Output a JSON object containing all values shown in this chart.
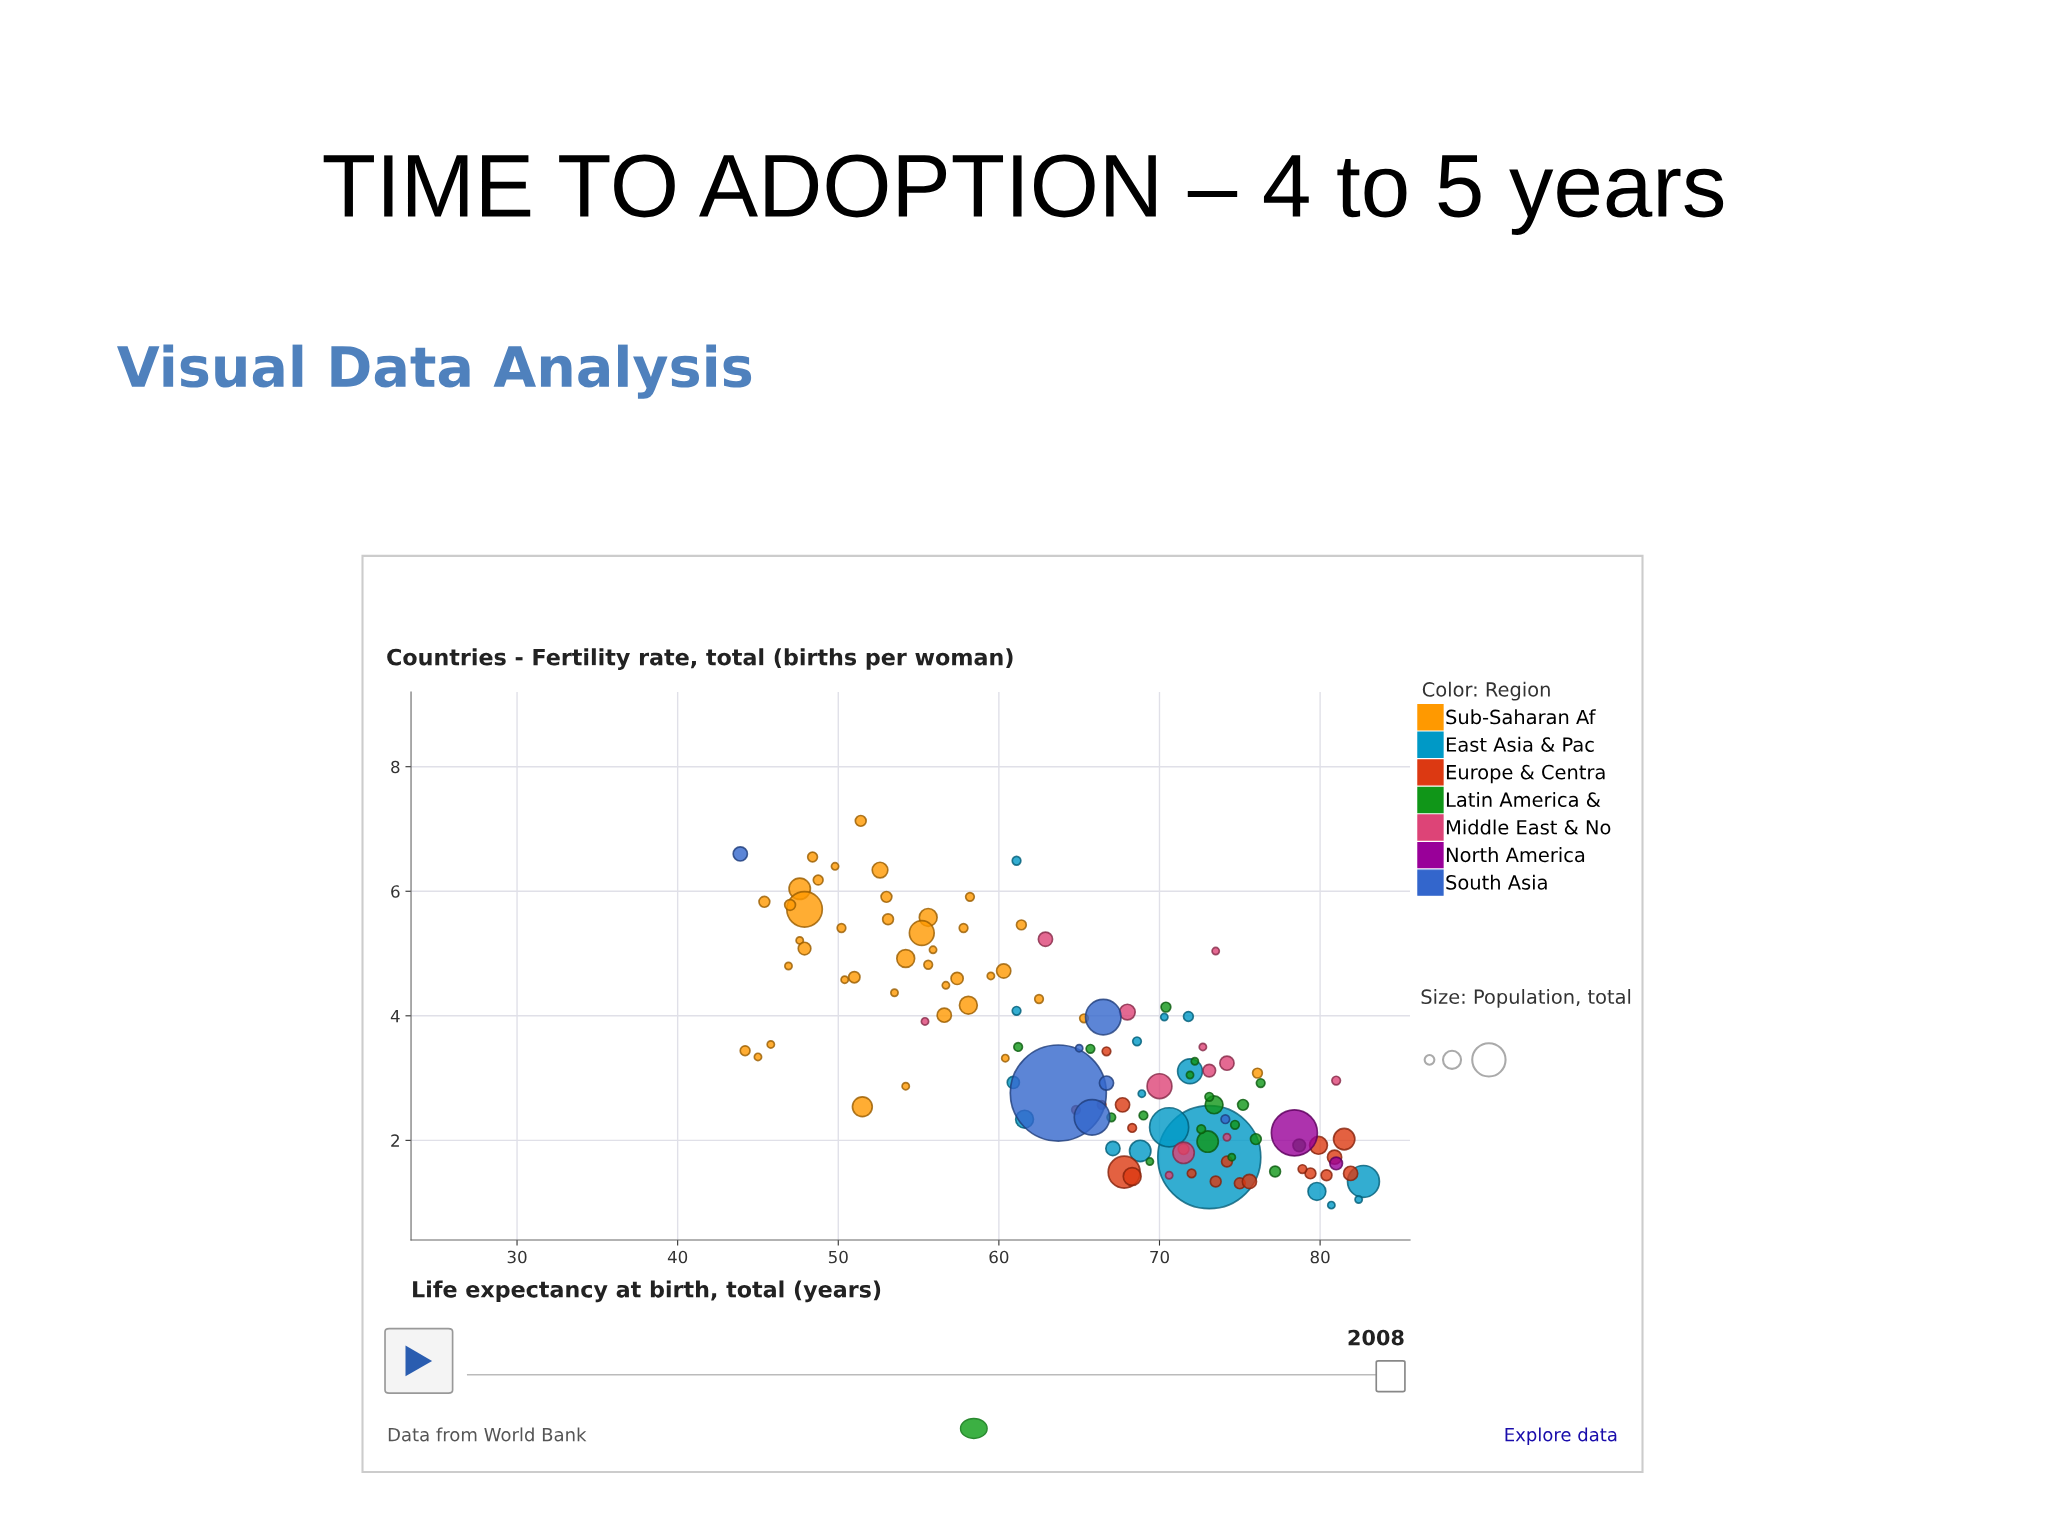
{
  "chart_data": {
    "type": "bubble",
    "title": "TIME TO ADOPTION – 4 to 5 years",
    "subtitle": "Visual Data Analysis",
    "ylabel": "Countries - Fertility rate, total (births per woman)",
    "xlabel": "Life expectancy at birth, total (years)",
    "legend_title": "Color: Region",
    "annotations": [
      "Size: Population, total",
      "2008",
      "Data from World Bank",
      "Explore data"
    ],
    "xlim": [
      23.4,
      85.6
    ],
    "ylim": [
      0.4,
      9.2
    ],
    "xticks": [
      30,
      40,
      50,
      60,
      70,
      80
    ],
    "yticks": [
      2,
      4,
      6,
      8
    ],
    "grid": true,
    "legend": "right",
    "marker": "circle",
    "series": [
      {
        "name": "Sub-Saharan Af",
        "color": "#ff9900",
        "x": [
          51.4,
          48.4,
          49.8,
          52.6,
          48.75,
          47.6,
          47.9,
          47.0,
          45.4,
          53.0,
          53.1,
          58.2,
          50.2,
          55.6,
          55.2,
          57.8,
          47.6,
          47.9,
          55.9,
          54.2,
          55.6,
          46.9,
          51.0,
          50.4,
          57.4,
          56.7,
          53.5,
          58.1,
          56.6,
          59.5,
          60.3,
          44.2,
          45.0,
          45.8,
          54.2,
          51.5,
          62.5,
          61.4,
          60.4,
          65.3,
          76.1
        ],
        "values": [
          7.13,
          6.55,
          6.4,
          6.34,
          6.18,
          6.04,
          5.71,
          5.78,
          5.83,
          5.91,
          5.55,
          5.91,
          5.41,
          5.58,
          5.33,
          5.41,
          5.21,
          5.08,
          5.06,
          4.92,
          4.82,
          4.8,
          4.62,
          4.58,
          4.6,
          4.49,
          4.37,
          4.17,
          4.01,
          4.64,
          4.72,
          3.44,
          3.34,
          3.54,
          2.87,
          2.54,
          4.27,
          5.46,
          3.32,
          3.96,
          3.08
        ],
        "sizes": [
          0.011,
          0.009,
          0.005,
          0.023,
          0.009,
          0.043,
          0.119,
          0.011,
          0.011,
          0.011,
          0.011,
          0.007,
          0.007,
          0.03,
          0.058,
          0.007,
          0.005,
          0.015,
          0.005,
          0.03,
          0.007,
          0.005,
          0.012,
          0.005,
          0.014,
          0.005,
          0.005,
          0.03,
          0.019,
          0.005,
          0.019,
          0.009,
          0.005,
          0.005,
          0.005,
          0.037,
          0.007,
          0.009,
          0.005,
          0.007,
          0.009
        ]
      },
      {
        "name": "East Asia & Pac",
        "color": "#0099c6",
        "x": [
          73.1,
          70.6,
          71.9,
          68.8,
          82.7,
          79.8,
          80.7,
          82.4,
          61.1,
          61.1,
          70.3,
          71.8,
          68.6,
          68.9,
          67.1,
          61.6,
          60.9
        ],
        "values": [
          1.73,
          2.21,
          3.11,
          1.83,
          1.34,
          1.18,
          0.96,
          1.05,
          6.49,
          4.08,
          3.98,
          3.99,
          3.59,
          2.75,
          1.87,
          2.34,
          2.93
        ],
        "sizes": [
          1.0,
          0.144,
          0.058,
          0.043,
          0.096,
          0.03,
          0.005,
          0.005,
          0.007,
          0.007,
          0.005,
          0.009,
          0.007,
          0.005,
          0.019,
          0.03,
          0.014
        ]
      },
      {
        "name": "Europe & Centra",
        "color": "#dc3912",
        "x": [
          67.8,
          68.3,
          67.7,
          66.7,
          68.3,
          72.0,
          73.5,
          75.0,
          75.6,
          79.9,
          81.5,
          80.9,
          81.9,
          79.4,
          80.4,
          78.9,
          74.2,
          71.5,
          64.8,
          66.4
        ],
        "values": [
          1.49,
          1.42,
          2.57,
          3.43,
          2.2,
          1.47,
          1.34,
          1.31,
          1.34,
          1.92,
          2.02,
          1.73,
          1.47,
          1.47,
          1.44,
          1.54,
          1.66,
          1.86,
          2.49,
          2.57
        ],
        "sizes": [
          0.096,
          0.03,
          0.019,
          0.007,
          0.007,
          0.007,
          0.011,
          0.011,
          0.019,
          0.03,
          0.043,
          0.019,
          0.019,
          0.011,
          0.011,
          0.007,
          0.011,
          0.011,
          0.007,
          0.007
        ]
      },
      {
        "name": "Latin America &",
        "color": "#109618",
        "x": [
          70.4,
          61.2,
          65.7,
          73.0,
          73.4,
          72.2,
          71.9,
          76.3,
          77.2,
          78.7,
          75.2,
          76.0,
          69.0,
          67.0,
          74.7,
          73.1,
          72.6,
          69.4,
          74.5
        ],
        "values": [
          4.14,
          3.5,
          3.47,
          1.98,
          2.57,
          3.27,
          3.05,
          2.92,
          1.5,
          1.92,
          2.57,
          2.02,
          2.4,
          2.37,
          2.25,
          2.7,
          2.18,
          1.66,
          1.73
        ],
        "sizes": [
          0.009,
          0.007,
          0.007,
          0.043,
          0.03,
          0.005,
          0.005,
          0.007,
          0.011,
          0.015,
          0.011,
          0.011,
          0.007,
          0.007,
          0.007,
          0.007,
          0.007,
          0.005,
          0.005
        ]
      },
      {
        "name": "Middle East & No",
        "color": "#dd4477",
        "x": [
          62.9,
          68.0,
          70.0,
          74.2,
          73.1,
          72.7,
          81.0,
          71.5,
          70.6,
          73.5,
          74.2,
          55.4
        ],
        "values": [
          5.23,
          4.06,
          2.87,
          3.24,
          3.12,
          3.5,
          2.96,
          1.8,
          1.44,
          5.04,
          2.05,
          3.91
        ],
        "sizes": [
          0.019,
          0.023,
          0.058,
          0.019,
          0.015,
          0.005,
          0.007,
          0.043,
          0.005,
          0.005,
          0.005,
          0.005
        ]
      },
      {
        "name": "North America",
        "color": "#990099",
        "x": [
          78.4,
          81.0
        ],
        "values": [
          2.12,
          1.63
        ],
        "sizes": [
          0.2,
          0.015
        ]
      },
      {
        "name": "South Asia",
        "color": "#3366cc",
        "x": [
          43.9,
          63.7,
          66.5,
          65.8,
          66.7,
          65.0,
          74.1
        ],
        "values": [
          6.6,
          2.76,
          3.98,
          2.37,
          2.92,
          3.48,
          2.34
        ],
        "sizes": [
          0.019,
          0.87,
          0.119,
          0.119,
          0.019,
          0.005,
          0.007
        ]
      }
    ]
  }
}
